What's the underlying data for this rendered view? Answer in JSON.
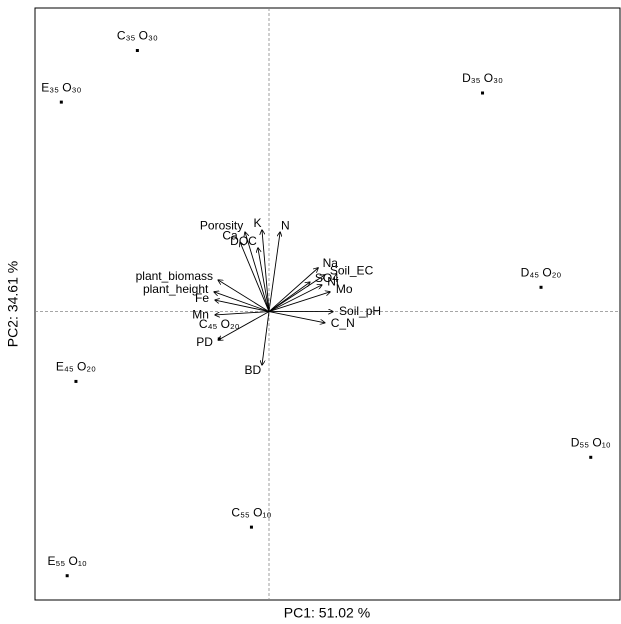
{
  "chart_data": {
    "type": "biplot",
    "xlabel": "PC1: 51.02 %",
    "ylabel": "PC2: 34.61 %",
    "xlim": [
      -0.8,
      1.2
    ],
    "ylim": [
      -0.95,
      1.0
    ],
    "points": {
      "labels": [
        "C₃₅ O₃₀",
        "E₃₅ O₃₀",
        "D₃₅ O₃₀",
        "D₄₅ O₂₀",
        "E₄₅ O₂₀",
        "C₄₅ O₂₀",
        "D₅₅ O₁₀",
        "C₅₅ O₁₀",
        "E₅₅ O₁₀"
      ],
      "x": [
        -0.45,
        -0.71,
        0.73,
        0.93,
        -0.66,
        -0.17,
        1.1,
        -0.06,
        -0.69
      ],
      "y": [
        0.86,
        0.69,
        0.72,
        0.08,
        -0.23,
        -0.09,
        -0.48,
        -0.71,
        -0.87
      ]
    },
    "loadings": {
      "labels": [
        "Porosity",
        "K",
        "N",
        "DOC",
        "Ca",
        "Na",
        "Soil_EC",
        "SO4",
        "Ni",
        "Mo",
        "Soil_pH",
        "C_N",
        "plant_biomass",
        "plant_height",
        "Fe",
        "Mn",
        "PD",
        "BD"
      ],
      "x": [
        -0.082,
        -0.024,
        0.038,
        -0.038,
        -0.099,
        0.168,
        0.191,
        0.14,
        0.181,
        0.209,
        0.219,
        0.191,
        -0.174,
        -0.188,
        -0.185,
        -0.185,
        -0.174,
        -0.024
      ],
      "y": [
        0.262,
        0.269,
        0.262,
        0.21,
        0.229,
        0.144,
        0.121,
        0.097,
        0.088,
        0.065,
        0.0,
        -0.037,
        0.104,
        0.065,
        0.038,
        -0.011,
        -0.094,
        -0.176
      ]
    }
  }
}
